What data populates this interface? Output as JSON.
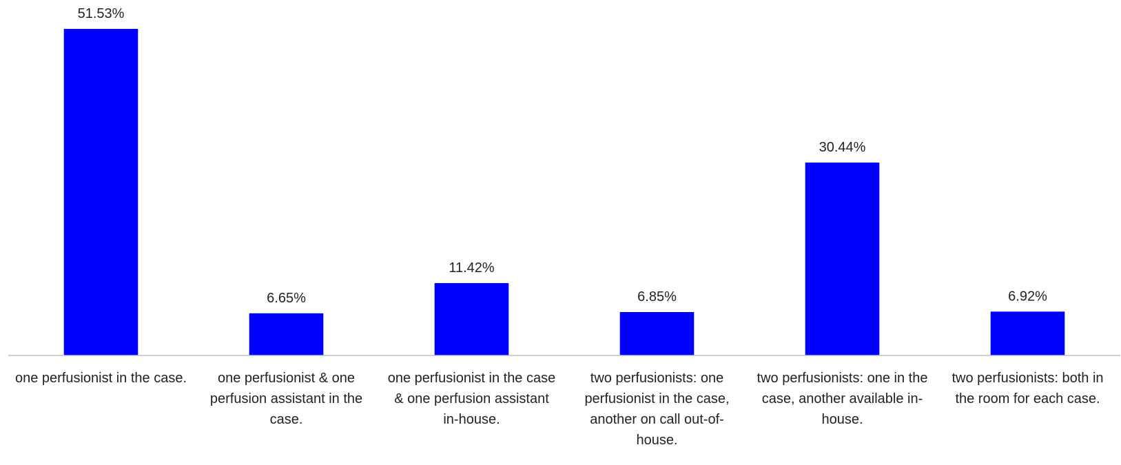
{
  "chart_data": {
    "type": "bar",
    "categories": [
      "one perfusionist in the case.",
      "one perfusionist & one perfusion assistant in the case.",
      "one perfusionist in the case & one perfusion assistant in-house.",
      "two perfusionists: one perfusionist in the case, another on call out-of-house.",
      "two perfusionists: one in the case, another available in-house.",
      "two perfusionists: both in the room for each case."
    ],
    "values": [
      51.53,
      6.65,
      11.42,
      6.85,
      30.44,
      6.92
    ],
    "value_labels": [
      "51.53%",
      "6.65%",
      "11.42%",
      "6.85%",
      "30.44%",
      "6.92%"
    ],
    "color": "#0000ff",
    "ylim": [
      0,
      55
    ]
  }
}
